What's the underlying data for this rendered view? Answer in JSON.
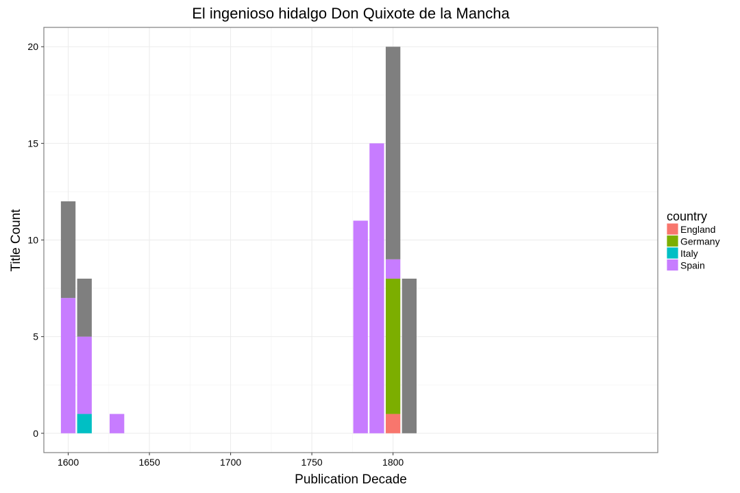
{
  "chart_data": {
    "type": "bar",
    "stacked": true,
    "title": "El ingenioso hidalgo Don Quixote de la Mancha",
    "xlabel": "Publication Decade",
    "ylabel": "Title Count",
    "xlim": [
      1585,
      1963
    ],
    "ylim": [
      -1,
      21
    ],
    "xticks": [
      1600,
      1650,
      1700,
      1750,
      1800
    ],
    "yticks": [
      0,
      5,
      10,
      15,
      20
    ],
    "grid": true,
    "bar_width_years": 9,
    "legend": {
      "title": "country",
      "position": "right",
      "entries": [
        {
          "label": "England",
          "color": "#F8766D"
        },
        {
          "label": "Germany",
          "color": "#7CAE00"
        },
        {
          "label": "Italy",
          "color": "#00BFC4"
        },
        {
          "label": "Spain",
          "color": "#C77CFF"
        }
      ]
    },
    "na_color": "#7F7F7F",
    "decades": [
      1600,
      1610,
      1630,
      1780,
      1790,
      1800,
      1810
    ],
    "series": [
      {
        "name": "England",
        "color": "#F8766D",
        "values": [
          0,
          0,
          0,
          0,
          0,
          1,
          0
        ]
      },
      {
        "name": "Germany",
        "color": "#7CAE00",
        "values": [
          0,
          0,
          0,
          0,
          0,
          7,
          0
        ]
      },
      {
        "name": "Italy",
        "color": "#00BFC4",
        "values": [
          0,
          1,
          0,
          0,
          0,
          0,
          0
        ]
      },
      {
        "name": "Spain",
        "color": "#C77CFF",
        "values": [
          7,
          4,
          1,
          11,
          15,
          1,
          0
        ]
      },
      {
        "color": "#7F7F7F",
        "values": [
          5,
          3,
          0,
          0,
          0,
          11,
          8
        ]
      }
    ]
  }
}
